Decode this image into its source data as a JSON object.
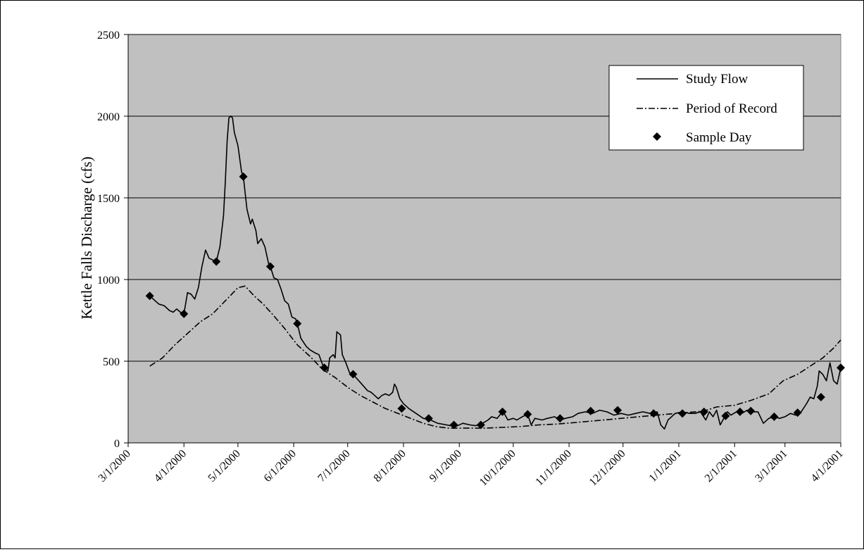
{
  "chart_data": {
    "type": "line",
    "title": "",
    "xlabel": "",
    "ylabel": "Kettle Falls Discharge (cfs)",
    "ylim": [
      0,
      2500
    ],
    "yticks": [
      0,
      500,
      1000,
      1500,
      2000,
      2500
    ],
    "xlim": [
      "2000-03-01",
      "2001-04-01"
    ],
    "xticks": [
      {
        "date": "2000-03-01",
        "label": "3/1/2000"
      },
      {
        "date": "2000-04-01",
        "label": "4/1/2000"
      },
      {
        "date": "2000-05-01",
        "label": "5/1/2000"
      },
      {
        "date": "2000-06-01",
        "label": "6/1/2000"
      },
      {
        "date": "2000-07-01",
        "label": "7/1/2000"
      },
      {
        "date": "2000-08-01",
        "label": "8/1/2000"
      },
      {
        "date": "2000-09-01",
        "label": "9/1/2000"
      },
      {
        "date": "2000-10-01",
        "label": "10/1/2000"
      },
      {
        "date": "2000-11-01",
        "label": "11/1/2000"
      },
      {
        "date": "2000-12-01",
        "label": "12/1/2000"
      },
      {
        "date": "2001-01-01",
        "label": "1/1/2001"
      },
      {
        "date": "2001-02-01",
        "label": "2/1/2001"
      },
      {
        "date": "2001-03-01",
        "label": "3/1/2001"
      },
      {
        "date": "2001-04-01",
        "label": "4/1/2001"
      }
    ],
    "grid": "horizontal",
    "legend_position": "top-right",
    "colors": {
      "plot_background": "#c0c0c0",
      "line": "#000000",
      "grid": "#000000"
    },
    "series": [
      {
        "name": "Study Flow",
        "style": "solid",
        "points": [
          [
            "2000-03-13",
            900
          ],
          [
            "2000-03-16",
            870
          ],
          [
            "2000-03-18",
            850
          ],
          [
            "2000-03-21",
            840
          ],
          [
            "2000-03-24",
            810
          ],
          [
            "2000-03-26",
            800
          ],
          [
            "2000-03-28",
            820
          ],
          [
            "2000-03-30",
            800
          ],
          [
            "2000-04-01",
            790
          ],
          [
            "2000-04-03",
            920
          ],
          [
            "2000-04-05",
            910
          ],
          [
            "2000-04-07",
            880
          ],
          [
            "2000-04-09",
            950
          ],
          [
            "2000-04-11",
            1080
          ],
          [
            "2000-04-13",
            1180
          ],
          [
            "2000-04-15",
            1130
          ],
          [
            "2000-04-17",
            1120
          ],
          [
            "2000-04-19",
            1110
          ],
          [
            "2000-04-21",
            1200
          ],
          [
            "2000-04-23",
            1390
          ],
          [
            "2000-04-24",
            1600
          ],
          [
            "2000-04-25",
            1850
          ],
          [
            "2000-04-26",
            1990
          ],
          [
            "2000-04-27",
            2000
          ],
          [
            "2000-04-28",
            1990
          ],
          [
            "2000-04-29",
            1900
          ],
          [
            "2000-05-01",
            1820
          ],
          [
            "2000-05-03",
            1660
          ],
          [
            "2000-05-04",
            1630
          ],
          [
            "2000-05-06",
            1430
          ],
          [
            "2000-05-08",
            1340
          ],
          [
            "2000-05-09",
            1370
          ],
          [
            "2000-05-11",
            1300
          ],
          [
            "2000-05-12",
            1220
          ],
          [
            "2000-05-14",
            1250
          ],
          [
            "2000-05-16",
            1200
          ],
          [
            "2000-05-18",
            1100
          ],
          [
            "2000-05-19",
            1080
          ],
          [
            "2000-05-21",
            1010
          ],
          [
            "2000-05-23",
            1000
          ],
          [
            "2000-05-25",
            940
          ],
          [
            "2000-05-27",
            870
          ],
          [
            "2000-05-29",
            850
          ],
          [
            "2000-05-31",
            770
          ],
          [
            "2000-06-02",
            760
          ],
          [
            "2000-06-03",
            730
          ],
          [
            "2000-06-05",
            640
          ],
          [
            "2000-06-08",
            590
          ],
          [
            "2000-06-10",
            570
          ],
          [
            "2000-06-13",
            550
          ],
          [
            "2000-06-15",
            540
          ],
          [
            "2000-06-17",
            480
          ],
          [
            "2000-06-18",
            460
          ],
          [
            "2000-06-20",
            440
          ],
          [
            "2000-06-21",
            520
          ],
          [
            "2000-06-23",
            540
          ],
          [
            "2000-06-24",
            520
          ],
          [
            "2000-06-25",
            680
          ],
          [
            "2000-06-27",
            660
          ],
          [
            "2000-06-28",
            540
          ],
          [
            "2000-06-30",
            490
          ],
          [
            "2000-07-02",
            430
          ],
          [
            "2000-07-04",
            420
          ],
          [
            "2000-07-08",
            370
          ],
          [
            "2000-07-12",
            320
          ],
          [
            "2000-07-14",
            310
          ],
          [
            "2000-07-16",
            290
          ],
          [
            "2000-07-18",
            270
          ],
          [
            "2000-07-20",
            290
          ],
          [
            "2000-07-22",
            300
          ],
          [
            "2000-07-24",
            290
          ],
          [
            "2000-07-26",
            310
          ],
          [
            "2000-07-27",
            360
          ],
          [
            "2000-07-28",
            340
          ],
          [
            "2000-07-30",
            270
          ],
          [
            "2000-08-01",
            240
          ],
          [
            "2000-08-04",
            210
          ],
          [
            "2000-08-08",
            180
          ],
          [
            "2000-08-12",
            150
          ],
          [
            "2000-08-16",
            140
          ],
          [
            "2000-08-20",
            120
          ],
          [
            "2000-08-25",
            110
          ],
          [
            "2000-08-30",
            100
          ],
          [
            "2000-09-03",
            120
          ],
          [
            "2000-09-07",
            110
          ],
          [
            "2000-09-10",
            105
          ],
          [
            "2000-09-14",
            120
          ],
          [
            "2000-09-17",
            140
          ],
          [
            "2000-09-19",
            160
          ],
          [
            "2000-09-22",
            150
          ],
          [
            "2000-09-25",
            190
          ],
          [
            "2000-09-26",
            180
          ],
          [
            "2000-09-28",
            140
          ],
          [
            "2000-10-01",
            150
          ],
          [
            "2000-10-03",
            140
          ],
          [
            "2000-10-06",
            160
          ],
          [
            "2000-10-09",
            175
          ],
          [
            "2000-10-11",
            110
          ],
          [
            "2000-10-13",
            150
          ],
          [
            "2000-10-17",
            140
          ],
          [
            "2000-10-20",
            150
          ],
          [
            "2000-10-24",
            160
          ],
          [
            "2000-10-27",
            140
          ],
          [
            "2000-10-30",
            150
          ],
          [
            "2000-11-03",
            160
          ],
          [
            "2000-11-06",
            180
          ],
          [
            "2000-11-10",
            190
          ],
          [
            "2000-11-14",
            180
          ],
          [
            "2000-11-18",
            200
          ],
          [
            "2000-11-22",
            190
          ],
          [
            "2000-11-26",
            170
          ],
          [
            "2000-11-30",
            180
          ],
          [
            "2000-12-04",
            170
          ],
          [
            "2000-12-08",
            180
          ],
          [
            "2000-12-12",
            190
          ],
          [
            "2000-12-16",
            180
          ],
          [
            "2000-12-18",
            180
          ],
          [
            "2000-12-20",
            190
          ],
          [
            "2000-12-22",
            110
          ],
          [
            "2000-12-24",
            85
          ],
          [
            "2000-12-26",
            140
          ],
          [
            "2000-12-30",
            180
          ],
          [
            "2001-01-03",
            190
          ],
          [
            "2001-01-07",
            180
          ],
          [
            "2001-01-10",
            180
          ],
          [
            "2001-01-13",
            190
          ],
          [
            "2001-01-16",
            140
          ],
          [
            "2001-01-18",
            190
          ],
          [
            "2001-01-20",
            160
          ],
          [
            "2001-01-22",
            200
          ],
          [
            "2001-01-24",
            110
          ],
          [
            "2001-01-26",
            150
          ],
          [
            "2001-01-28",
            190
          ],
          [
            "2001-01-30",
            170
          ],
          [
            "2001-02-02",
            190
          ],
          [
            "2001-02-05",
            180
          ],
          [
            "2001-02-08",
            200
          ],
          [
            "2001-02-11",
            190
          ],
          [
            "2001-02-14",
            190
          ],
          [
            "2001-02-17",
            120
          ],
          [
            "2001-02-20",
            150
          ],
          [
            "2001-02-23",
            160
          ],
          [
            "2001-02-26",
            150
          ],
          [
            "2001-03-01",
            160
          ],
          [
            "2001-03-04",
            180
          ],
          [
            "2001-03-07",
            170
          ],
          [
            "2001-03-10",
            190
          ],
          [
            "2001-03-13",
            240
          ],
          [
            "2001-03-15",
            280
          ],
          [
            "2001-03-17",
            270
          ],
          [
            "2001-03-19",
            350
          ],
          [
            "2001-03-20",
            440
          ],
          [
            "2001-03-22",
            420
          ],
          [
            "2001-03-24",
            380
          ],
          [
            "2001-03-26",
            490
          ],
          [
            "2001-03-28",
            380
          ],
          [
            "2001-03-30",
            360
          ],
          [
            "2001-04-01",
            460
          ]
        ]
      },
      {
        "name": "Period of Record",
        "style": "dash-dot",
        "points": [
          [
            "2000-03-13",
            470
          ],
          [
            "2000-03-20",
            520
          ],
          [
            "2000-03-27",
            600
          ],
          [
            "2000-04-03",
            670
          ],
          [
            "2000-04-10",
            740
          ],
          [
            "2000-04-17",
            790
          ],
          [
            "2000-04-24",
            870
          ],
          [
            "2000-05-01",
            950
          ],
          [
            "2000-05-05",
            960
          ],
          [
            "2000-05-10",
            900
          ],
          [
            "2000-05-15",
            850
          ],
          [
            "2000-05-20",
            790
          ],
          [
            "2000-05-27",
            700
          ],
          [
            "2000-06-03",
            600
          ],
          [
            "2000-06-10",
            530
          ],
          [
            "2000-06-17",
            450
          ],
          [
            "2000-06-24",
            400
          ],
          [
            "2000-07-01",
            340
          ],
          [
            "2000-07-08",
            290
          ],
          [
            "2000-07-15",
            250
          ],
          [
            "2000-07-22",
            210
          ],
          [
            "2000-07-29",
            180
          ],
          [
            "2000-08-05",
            150
          ],
          [
            "2000-08-12",
            120
          ],
          [
            "2000-08-19",
            100
          ],
          [
            "2000-08-26",
            90
          ],
          [
            "2000-09-05",
            90
          ],
          [
            "2000-09-15",
            90
          ],
          [
            "2000-09-25",
            95
          ],
          [
            "2000-10-05",
            100
          ],
          [
            "2000-10-15",
            110
          ],
          [
            "2000-10-25",
            115
          ],
          [
            "2000-11-05",
            125
          ],
          [
            "2000-11-15",
            135
          ],
          [
            "2000-11-25",
            145
          ],
          [
            "2000-12-05",
            155
          ],
          [
            "2000-12-15",
            165
          ],
          [
            "2000-12-25",
            175
          ],
          [
            "2001-01-05",
            185
          ],
          [
            "2001-01-15",
            195
          ],
          [
            "2001-01-22",
            220
          ],
          [
            "2001-02-01",
            230
          ],
          [
            "2001-02-10",
            260
          ],
          [
            "2001-02-20",
            300
          ],
          [
            "2001-02-28",
            380
          ],
          [
            "2001-03-08",
            420
          ],
          [
            "2001-03-15",
            470
          ],
          [
            "2001-03-22",
            520
          ],
          [
            "2001-03-28",
            580
          ],
          [
            "2001-04-01",
            630
          ]
        ]
      },
      {
        "name": "Sample Day",
        "style": "diamond-marker",
        "points": [
          [
            "2000-03-13",
            900
          ],
          [
            "2000-04-01",
            790
          ],
          [
            "2000-04-19",
            1110
          ],
          [
            "2000-05-04",
            1630
          ],
          [
            "2000-05-19",
            1080
          ],
          [
            "2000-06-03",
            730
          ],
          [
            "2000-06-18",
            460
          ],
          [
            "2000-07-04",
            420
          ],
          [
            "2000-07-31",
            210
          ],
          [
            "2000-08-15",
            150
          ],
          [
            "2000-08-29",
            110
          ],
          [
            "2000-09-13",
            110
          ],
          [
            "2000-09-25",
            190
          ],
          [
            "2000-10-09",
            175
          ],
          [
            "2000-10-27",
            150
          ],
          [
            "2000-11-13",
            195
          ],
          [
            "2000-11-28",
            200
          ],
          [
            "2000-12-18",
            180
          ],
          [
            "2001-01-03",
            180
          ],
          [
            "2001-01-15",
            190
          ],
          [
            "2001-01-27",
            165
          ],
          [
            "2001-02-04",
            190
          ],
          [
            "2001-02-10",
            195
          ],
          [
            "2001-02-23",
            160
          ],
          [
            "2001-03-08",
            185
          ],
          [
            "2001-03-21",
            280
          ],
          [
            "2001-04-01",
            460
          ]
        ]
      }
    ]
  }
}
